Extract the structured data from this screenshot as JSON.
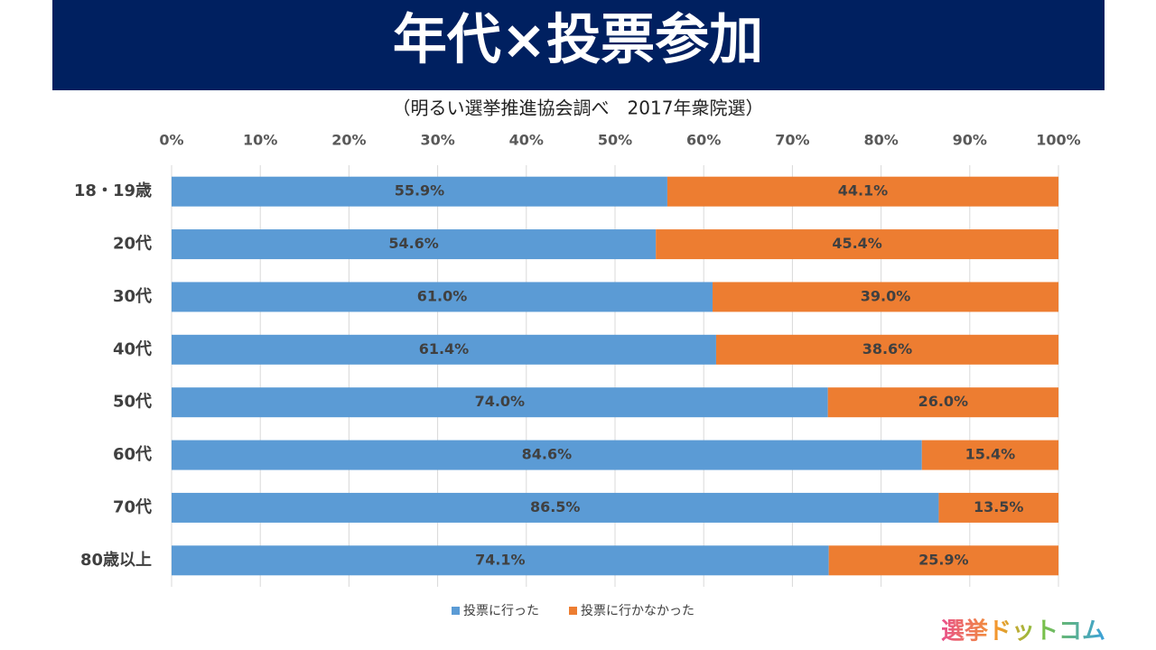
{
  "chart_data": {
    "type": "stacked_barh",
    "title": "年代×投票参加",
    "subtitle": "（明るい選挙推進協会調べ　2017年衆院選）",
    "categories": [
      "18・19歳",
      "20代",
      "30代",
      "40代",
      "50代",
      "60代",
      "70代",
      "80歳以上"
    ],
    "series": [
      {
        "name": "投票に行った",
        "color": "#5B9BD5",
        "values": [
          55.9,
          54.6,
          61.0,
          61.4,
          74.0,
          84.6,
          86.5,
          74.1
        ],
        "value_labels": [
          "55.9%",
          "54.6%",
          "61.0%",
          "61.4%",
          "74.0%",
          "84.6%",
          "86.5%",
          "74.1%"
        ]
      },
      {
        "name": "投票に行かなかった",
        "color": "#ED7D31",
        "values": [
          44.1,
          45.4,
          39.0,
          38.6,
          26.0,
          15.4,
          13.5,
          25.9
        ],
        "value_labels": [
          "44.1%",
          "45.4%",
          "39.0%",
          "38.6%",
          "26.0%",
          "15.4%",
          "13.5%",
          "25.9%"
        ]
      }
    ],
    "xlim": [
      0,
      100
    ],
    "xticks": [
      {
        "value": 0,
        "label": "0%"
      },
      {
        "value": 10,
        "label": "10%"
      },
      {
        "value": 20,
        "label": "20%"
      },
      {
        "value": 30,
        "label": "30%"
      },
      {
        "value": 40,
        "label": "40%"
      },
      {
        "value": 50,
        "label": "50%"
      },
      {
        "value": 60,
        "label": "60%"
      },
      {
        "value": 70,
        "label": "70%"
      },
      {
        "value": 80,
        "label": "80%"
      },
      {
        "value": 90,
        "label": "90%"
      },
      {
        "value": 100,
        "label": "100%"
      }
    ],
    "grid": true,
    "legend": "bottom"
  },
  "logo": "選挙ドットコム"
}
